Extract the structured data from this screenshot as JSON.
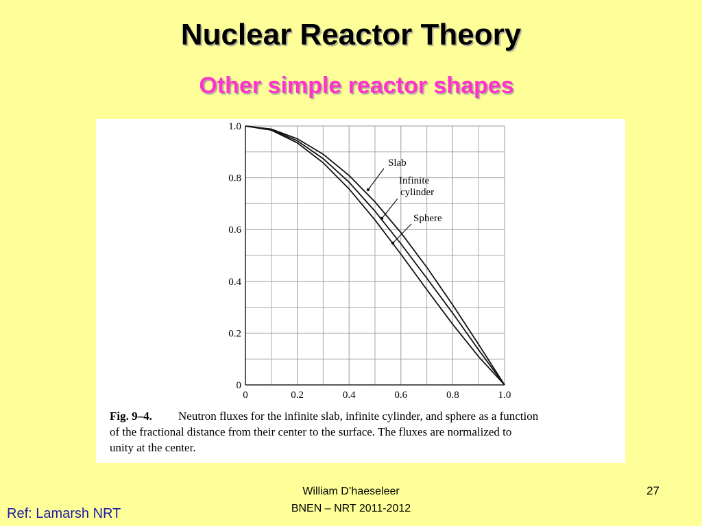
{
  "slide": {
    "title": "Nuclear Reactor Theory",
    "subtitle": "Other simple reactor shapes",
    "author": "William D’haeseleer",
    "course": "BNEN – NRT 2011-2012",
    "page": "27",
    "reference": "Ref: Lamarsh NRT"
  },
  "chart_data": {
    "type": "line",
    "x": [
      0,
      0.1,
      0.2,
      0.3,
      0.4,
      0.5,
      0.6,
      0.7,
      0.8,
      0.9,
      1.0
    ],
    "series": [
      {
        "name": "Slab",
        "color": "#111111",
        "values": [
          1,
          0.988,
          0.951,
          0.891,
          0.809,
          0.707,
          0.588,
          0.454,
          0.309,
          0.156,
          0
        ]
      },
      {
        "name": "Infinite cylinder",
        "color": "#111111",
        "values": [
          1,
          0.986,
          0.943,
          0.874,
          0.783,
          0.671,
          0.545,
          0.412,
          0.277,
          0.135,
          0
        ]
      },
      {
        "name": "Sphere",
        "color": "#111111",
        "values": [
          1,
          0.984,
          0.935,
          0.858,
          0.757,
          0.637,
          0.505,
          0.368,
          0.234,
          0.109,
          0
        ]
      }
    ],
    "annotations": [
      [
        "Slab"
      ],
      [
        "Infinite",
        "cylinder"
      ],
      [
        "Sphere"
      ]
    ],
    "xlim": [
      0,
      1
    ],
    "ylim": [
      0,
      1
    ],
    "xticks": [
      0,
      0.2,
      0.4,
      0.6,
      0.8,
      {
        "value": 1,
        "label": "1.0"
      }
    ],
    "yticks": [
      0,
      0.2,
      0.4,
      0.6,
      0.8,
      {
        "value": 1,
        "label": "1.0"
      }
    ],
    "grid": true,
    "caption_label": "Fig. 9–4.",
    "caption_lines": [
      "Neutron fluxes for the infinite slab, infinite cylinder, and sphere as a function",
      "of the fractional distance from their center to the surface.  The fluxes are normalized to",
      "unity at the center."
    ]
  }
}
